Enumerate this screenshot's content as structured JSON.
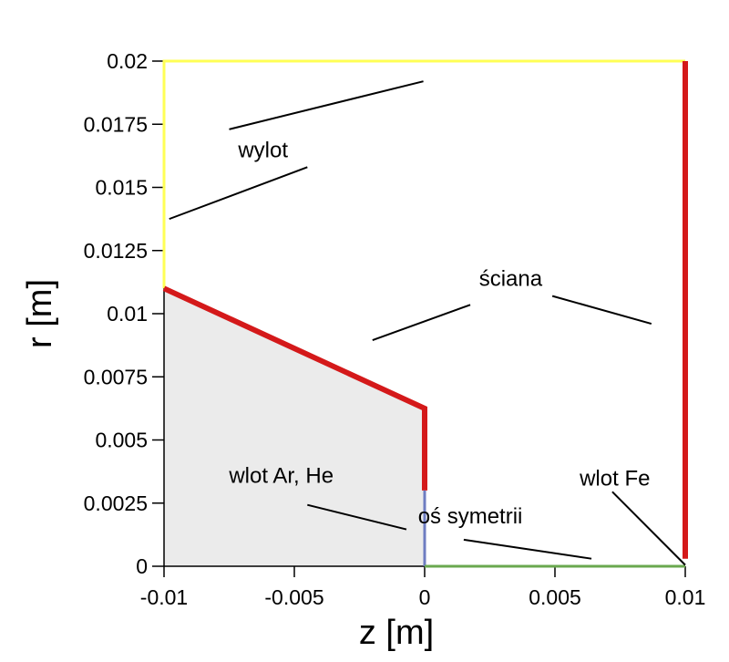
{
  "diagram": {
    "x_axis": {
      "label": "z [m]",
      "min": -0.01,
      "max": 0.01,
      "ticks": [
        {
          "value": -0.01,
          "label": "-0.01"
        },
        {
          "value": -0.005,
          "label": "-0.005"
        },
        {
          "value": 0,
          "label": "0"
        },
        {
          "value": 0.005,
          "label": "0.005"
        },
        {
          "value": 0.01,
          "label": "0.01"
        }
      ]
    },
    "y_axis": {
      "label": "r [m]",
      "min": 0,
      "max": 0.02,
      "ticks": [
        {
          "value": 0,
          "label": "0"
        },
        {
          "value": 0.0025,
          "label": "0.0025"
        },
        {
          "value": 0.005,
          "label": "0.005"
        },
        {
          "value": 0.0075,
          "label": "0.0075"
        },
        {
          "value": 0.01,
          "label": "0.01"
        },
        {
          "value": 0.0125,
          "label": "0.0125"
        },
        {
          "value": 0.015,
          "label": "0.015"
        },
        {
          "value": 0.0175,
          "label": "0.0175"
        },
        {
          "value": 0.02,
          "label": "0.02"
        }
      ]
    },
    "solid_region": {
      "color": "#ebebeb",
      "points": [
        [
          -0.01,
          0
        ],
        [
          -0.01,
          0.011
        ],
        [
          0,
          0.00625
        ],
        [
          0,
          0
        ]
      ]
    },
    "boundaries": [
      {
        "name": "wylot",
        "color": "#ffff55",
        "points": [
          [
            -0.01,
            0.011
          ],
          [
            -0.01,
            0.02
          ],
          [
            0.01,
            0.02
          ]
        ]
      },
      {
        "name": "sciana-nozzle",
        "color": "#d4191a",
        "points": [
          [
            -0.01,
            0.011
          ],
          [
            0,
            0.00625
          ],
          [
            0,
            0.003
          ]
        ]
      },
      {
        "name": "sciana-right",
        "color": "#d4191a",
        "points": [
          [
            0.01,
            0.0003
          ],
          [
            0.01,
            0.02
          ]
        ]
      },
      {
        "name": "wlot-ar-he",
        "color": "#6e7dc2",
        "points": [
          [
            0,
            0
          ],
          [
            0,
            0.003
          ]
        ]
      },
      {
        "name": "os-symetrii",
        "color": "#6aa84f",
        "points": [
          [
            0,
            0
          ],
          [
            0.01,
            0
          ]
        ]
      }
    ],
    "annotations": [
      {
        "id": "wylot",
        "text": "wylot",
        "x": -0.0062,
        "y": 0.0162,
        "leaders": [
          [
            [
              -0.0075,
              0.0173
            ],
            [
              -5e-05,
              0.0192
            ]
          ],
          [
            [
              -0.0098,
              0.01375
            ],
            [
              -0.0045,
              0.0158
            ]
          ]
        ]
      },
      {
        "id": "sciana",
        "text": "ściana",
        "x": 0.0033,
        "y": 0.0111,
        "leaders": [
          [
            [
              -0.002,
              0.00895
            ],
            [
              0.00175,
              0.01035
            ]
          ],
          [
            [
              0.0049,
              0.0107
            ],
            [
              0.0087,
              0.0096
            ]
          ]
        ]
      },
      {
        "id": "wlot-ar-he",
        "text": "wlot Ar, He",
        "x": -0.0055,
        "y": 0.0033,
        "leaders": [
          [
            [
              -0.0045,
              0.00243
            ],
            [
              -0.0007,
              0.00146
            ]
          ]
        ]
      },
      {
        "id": "os-symetrii",
        "text": "oś symetrii",
        "x": 0.00175,
        "y": 0.0017,
        "leaders": [
          [
            [
              0.0015,
              0.00105
            ],
            [
              0.0064,
              0.0003
            ]
          ]
        ]
      },
      {
        "id": "wlot-fe",
        "text": "wlot Fe",
        "x": 0.0073,
        "y": 0.0032,
        "leaders": [
          [
            [
              0.0072,
              0.00295
            ],
            [
              0.01,
              5e-05
            ]
          ]
        ]
      }
    ]
  }
}
